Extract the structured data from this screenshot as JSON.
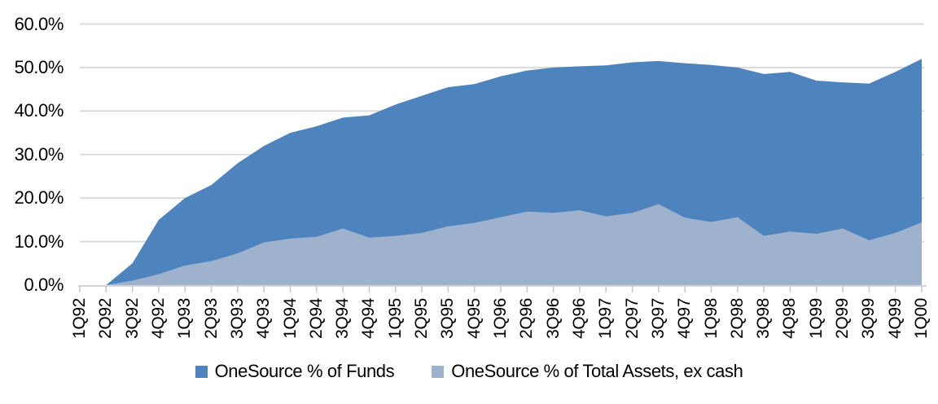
{
  "chart_data": {
    "type": "area",
    "stacked": false,
    "grid": true,
    "legend_position": "bottom",
    "x_tick_label_rotation": -90,
    "ylim": [
      0,
      60
    ],
    "categories": [
      "1Q92",
      "2Q92",
      "3Q92",
      "4Q92",
      "1Q93",
      "2Q93",
      "3Q93",
      "4Q93",
      "1Q94",
      "2Q94",
      "3Q94",
      "4Q94",
      "1Q95",
      "2Q95",
      "3Q95",
      "4Q95",
      "1Q96",
      "2Q96",
      "3Q96",
      "4Q96",
      "1Q97",
      "2Q97",
      "3Q97",
      "4Q97",
      "1Q98",
      "2Q98",
      "3Q98",
      "4Q98",
      "1Q99",
      "2Q99",
      "3Q99",
      "4Q99",
      "1Q00"
    ],
    "series": [
      {
        "name": "OneSource % of Funds",
        "color": "#4D84BE",
        "values": [
          0.0,
          0.0,
          5.0,
          15.0,
          20.0,
          23.0,
          28.0,
          32.0,
          35.0,
          36.5,
          38.5,
          39.0,
          41.5,
          43.5,
          45.5,
          46.2,
          48.0,
          49.3,
          50.0,
          50.3,
          50.5,
          51.2,
          51.5,
          51.0,
          50.6,
          50.0,
          48.5,
          49.0,
          47.0,
          46.6,
          46.3,
          49.0,
          52.0
        ]
      },
      {
        "name": "OneSource % of Total Assets, ex cash",
        "color": "#9EB2CD",
        "values": [
          0.0,
          0.0,
          1.0,
          2.5,
          4.5,
          5.5,
          7.3,
          9.8,
          10.7,
          11.1,
          13.0,
          10.9,
          11.3,
          12.0,
          13.5,
          14.3,
          15.6,
          16.9,
          16.6,
          17.2,
          15.8,
          16.6,
          18.6,
          15.5,
          14.5,
          15.6,
          11.3,
          12.3,
          11.8,
          13.0,
          10.3,
          12.0,
          14.4
        ]
      }
    ],
    "y_ticks": [
      {
        "value": 0,
        "label": "0.0%"
      },
      {
        "value": 10,
        "label": "10.0%"
      },
      {
        "value": 20,
        "label": "20.0%"
      },
      {
        "value": 30,
        "label": "30.0%"
      },
      {
        "value": 40,
        "label": "40.0%"
      },
      {
        "value": 50,
        "label": "50.0%"
      },
      {
        "value": 60,
        "label": "60.0%"
      }
    ]
  },
  "colors": {
    "background": "#FFFFFF",
    "gridline": "#D9D9D9",
    "axis_line": "#D4D4D4",
    "tick": "#C9C9C9",
    "text": "#000000"
  }
}
